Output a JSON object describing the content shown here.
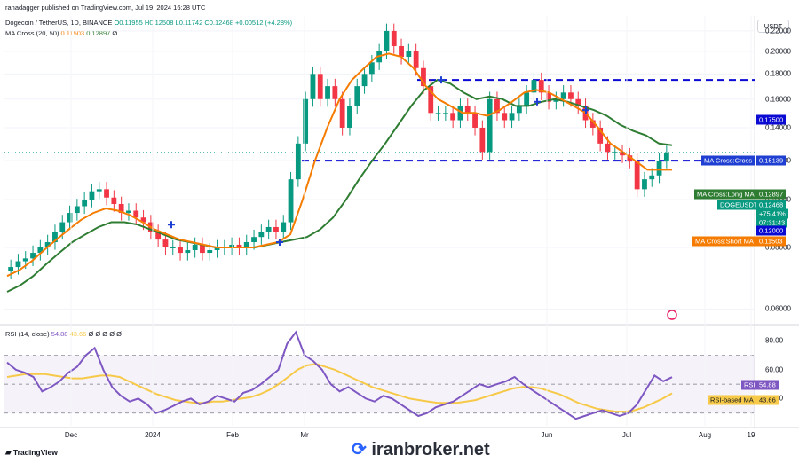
{
  "header": {
    "published": "ranadagger published on TradingView.com, Jul 19, 2024 16:28 UTC",
    "symbol": "Dogecoin / TetherUS, 1D, BINANCE",
    "ohlc": "O0.11955 H0.12508 L0.11742 C0.12468 +0.00512 (+4.28%)",
    "ma": "MA Cross (20, 50)",
    "ma_short": "0.11503",
    "ma_long": "0.12897",
    "ma_suffix": "Ø",
    "rsi": "RSI (14, close)",
    "rsi_value": "54.88",
    "rsi_ma": "43.66",
    "rsi_suffix": "Ø Ø Ø Ø Ø"
  },
  "currency": "USDT",
  "footer": {
    "logo": "TradingView",
    "watermark": "iranbroker.net"
  },
  "colors": {
    "up": "#089981",
    "down": "#f23645",
    "ma_short": "#f57c00",
    "ma_long": "#2e7d32",
    "level": "#0a0ad2",
    "rsi": "#7e57c2"
  },
  "tags": {
    "level_175": "0.17500",
    "ma_cross_label": "MA Cross:Cross",
    "ma_cross_value": "0.15139",
    "long_label": "MA Cross:Long MA",
    "long_value": "0.12897",
    "symbol_label": "DOGEUSDT",
    "symbol_value": "0.12468",
    "change": "+75.41%",
    "countdown": "07:31:43",
    "level_120": "0.12000",
    "short_label": "MA Cross:Short MA",
    "short_value": "0.11503",
    "rsi_label": "RSI",
    "rsi_value": "54.88",
    "rsi_ma_label": "RSI-based MA",
    "rsi_ma_value": "43.66"
  },
  "chart_data": [
    {
      "type": "candlestick",
      "yscale": "log",
      "ylim": [
        0.056,
        0.236
      ],
      "yticks": [
        0.22,
        0.2,
        0.18,
        0.16,
        0.14,
        0.12,
        0.1,
        0.08,
        0.06
      ],
      "ytick_labels": [
        "0.22000",
        "0.20000",
        "0.18000",
        "0.16000",
        "0.14000",
        "0.12000",
        "0.10000",
        "0.08000",
        "0.06000"
      ],
      "xticks": [
        "Dec",
        "2024",
        "Feb",
        "Mr",
        "Jun",
        "Jul",
        "Aug",
        "19"
      ],
      "closes": [
        0.073,
        0.075,
        0.076,
        0.078,
        0.08,
        0.082,
        0.086,
        0.09,
        0.094,
        0.097,
        0.1,
        0.104,
        0.105,
        0.101,
        0.098,
        0.094,
        0.095,
        0.092,
        0.09,
        0.086,
        0.083,
        0.08,
        0.08,
        0.078,
        0.079,
        0.081,
        0.078,
        0.079,
        0.08,
        0.08,
        0.081,
        0.08,
        0.082,
        0.084,
        0.086,
        0.088,
        0.086,
        0.09,
        0.11,
        0.13,
        0.16,
        0.18,
        0.16,
        0.17,
        0.16,
        0.14,
        0.155,
        0.17,
        0.18,
        0.19,
        0.2,
        0.22,
        0.205,
        0.195,
        0.2,
        0.185,
        0.17,
        0.15,
        0.15,
        0.15,
        0.145,
        0.155,
        0.15,
        0.14,
        0.125,
        0.16,
        0.15,
        0.145,
        0.15,
        0.155,
        0.165,
        0.175,
        0.165,
        0.158,
        0.16,
        0.165,
        0.16,
        0.155,
        0.145,
        0.14,
        0.13,
        0.125,
        0.125,
        0.123,
        0.12,
        0.105,
        0.11,
        0.112,
        0.12,
        0.12468
      ],
      "series": [
        {
          "name": "MA Cross:Short MA",
          "last": 0.11503
        },
        {
          "name": "MA Cross:Long MA",
          "last": 0.12897
        }
      ],
      "levels": [
        0.175,
        0.12
      ],
      "ma_crosses": [
        0.089,
        0.082,
        0.175,
        0.158,
        0.152
      ],
      "ma_short": [
        0.07,
        0.072,
        0.075,
        0.079,
        0.083,
        0.087,
        0.091,
        0.094,
        0.096,
        0.095,
        0.093,
        0.09,
        0.087,
        0.085,
        0.083,
        0.082,
        0.081,
        0.08,
        0.08,
        0.08,
        0.08,
        0.081,
        0.082,
        0.085,
        0.1,
        0.12,
        0.14,
        0.16,
        0.175,
        0.185,
        0.195,
        0.198,
        0.195,
        0.185,
        0.17,
        0.16,
        0.155,
        0.15,
        0.15,
        0.148,
        0.152,
        0.158,
        0.165,
        0.167,
        0.165,
        0.16,
        0.155,
        0.15,
        0.14,
        0.13,
        0.125,
        0.12,
        0.115,
        0.115,
        0.11503
      ],
      "ma_long": [
        0.065,
        0.067,
        0.07,
        0.074,
        0.078,
        0.082,
        0.085,
        0.088,
        0.09,
        0.09,
        0.089,
        0.087,
        0.085,
        0.083,
        0.082,
        0.081,
        0.08,
        0.08,
        0.08,
        0.08,
        0.081,
        0.082,
        0.083,
        0.084,
        0.087,
        0.092,
        0.1,
        0.11,
        0.12,
        0.13,
        0.142,
        0.155,
        0.167,
        0.175,
        0.172,
        0.165,
        0.16,
        0.162,
        0.16,
        0.155,
        0.155,
        0.158,
        0.16,
        0.158,
        0.155,
        0.152,
        0.148,
        0.142,
        0.138,
        0.135,
        0.13,
        0.12897
      ]
    },
    {
      "type": "line",
      "title": "RSI (14, close)",
      "ylim": [
        20,
        90
      ],
      "yticks": [
        80,
        60,
        40
      ],
      "ytick_labels": [
        "80.00",
        "60.00",
        "40.00"
      ],
      "band": [
        30,
        70
      ],
      "series": [
        {
          "name": "RSI",
          "values": [
            65,
            60,
            58,
            55,
            45,
            48,
            52,
            58,
            62,
            70,
            75,
            60,
            48,
            42,
            38,
            40,
            36,
            30,
            32,
            35,
            38,
            40,
            36,
            38,
            42,
            40,
            38,
            44,
            46,
            50,
            55,
            60,
            78,
            86,
            70,
            66,
            60,
            50,
            45,
            48,
            44,
            40,
            38,
            42,
            40,
            36,
            32,
            28,
            30,
            34,
            36,
            38,
            42,
            46,
            50,
            48,
            50,
            52,
            55,
            50,
            46,
            42,
            38,
            34,
            30,
            26,
            28,
            30,
            32,
            30,
            28,
            30,
            36,
            46,
            56,
            52,
            54.88
          ]
        },
        {
          "name": "RSI-based MA",
          "values": [
            55,
            56,
            57,
            57,
            57,
            56,
            55,
            54,
            54,
            55,
            56,
            56,
            55,
            52,
            49,
            46,
            43,
            41,
            39,
            38,
            37,
            37,
            38,
            38,
            39,
            40,
            41,
            43,
            46,
            50,
            55,
            60,
            63,
            64,
            62,
            60,
            57,
            54,
            51,
            48,
            46,
            44,
            42,
            40,
            39,
            38,
            37,
            37,
            37,
            38,
            39,
            41,
            43,
            45,
            47,
            48,
            48,
            47,
            45,
            43,
            40,
            37,
            35,
            33,
            32,
            31,
            31,
            32,
            34,
            37,
            40,
            43.66
          ]
        }
      ],
      "last": 54.88,
      "ma_last": 43.66
    }
  ]
}
